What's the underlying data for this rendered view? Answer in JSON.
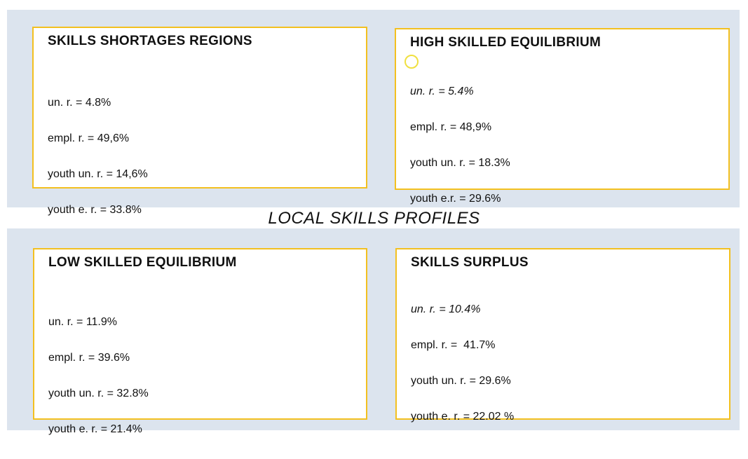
{
  "title": "LOCAL SKILLS PROFILES",
  "boxes": [
    {
      "title": "SKILLS SHORTAGES REGIONS",
      "lines": [
        "un. r. = 4.8%",
        "empl. r. = 49,6%",
        "youth un. r. = 14,6%",
        "youth e. r. = 33.8%"
      ]
    },
    {
      "title": "HIGH SKILLED EQUILIBRIUM",
      "lines": [
        "un. r. = 5.4%",
        "empl. r. = 48,9%",
        "youth un. r. = 18.3%",
        "youth e.r. = 29.6%"
      ]
    },
    {
      "title": "LOW SKILLED EQUILIBRIUM",
      "lines": [
        "un. r. = 11.9%",
        "empl. r. = 39.6%",
        "youth un. r. = 32.8%",
        "youth e. r. = 21.4%"
      ]
    },
    {
      "title": "SKILLS SURPLUS",
      "lines": [
        "un. r. = 10.4%",
        "empl. r. =  41.7%",
        "youth un. r. = 29.6%",
        "youth e. r. = 22.02 %"
      ]
    }
  ]
}
